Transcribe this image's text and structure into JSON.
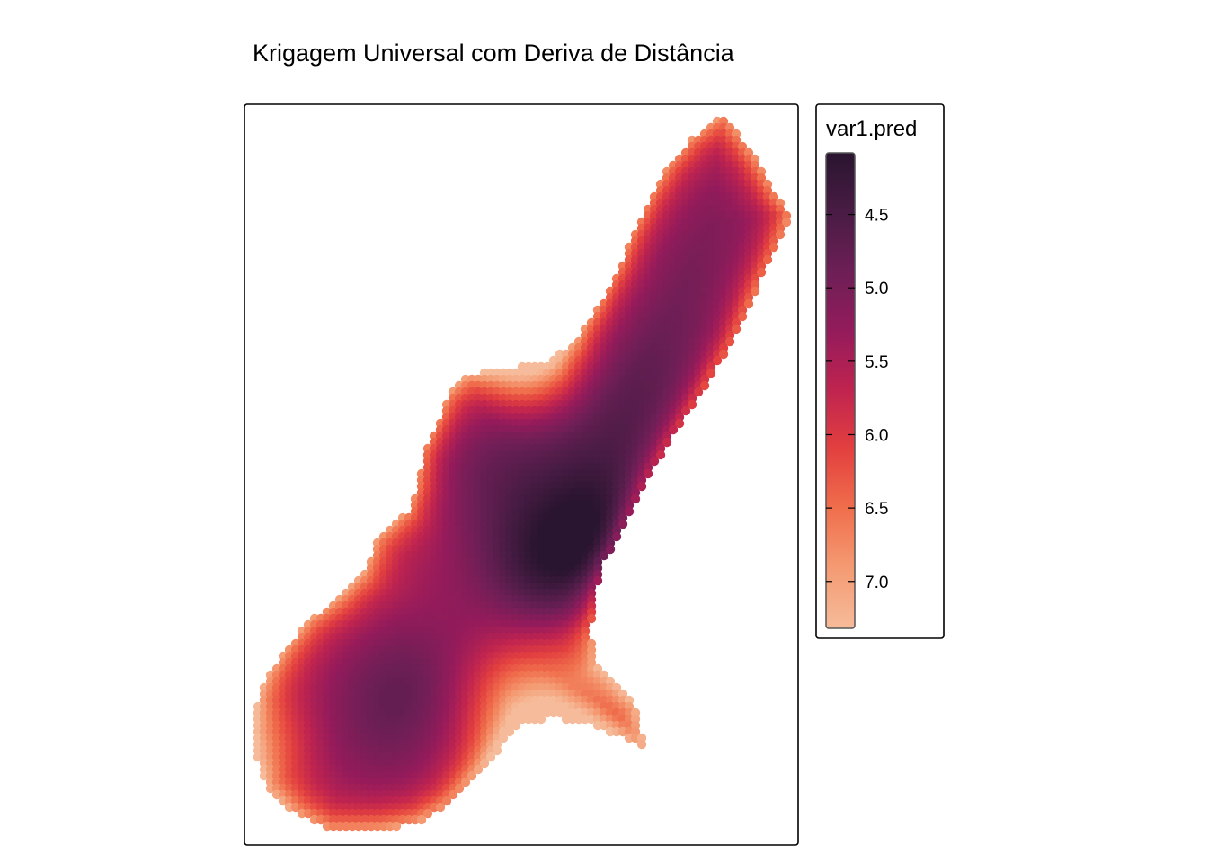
{
  "chart_data": {
    "type": "heatmap",
    "title": "Krigagem Universal com Deriva de Distância",
    "xlabel": "",
    "ylabel": "",
    "grid": false,
    "legend": {
      "title": "var1.pred",
      "position": "right",
      "range": [
        4.08,
        7.32
      ],
      "ticks": [
        "4.5",
        "5.0",
        "5.5",
        "6.0",
        "6.5",
        "7.0"
      ],
      "tick_values": [
        4.5,
        5.0,
        5.5,
        6.0,
        6.5,
        7.0
      ],
      "colormap": "rocket",
      "color_stops": [
        {
          "value": 4.08,
          "color": "#2a1530"
        },
        {
          "value": 4.5,
          "color": "#4a1c45"
        },
        {
          "value": 4.9,
          "color": "#6e1f56"
        },
        {
          "value": 5.3,
          "color": "#951b5b"
        },
        {
          "value": 5.7,
          "color": "#c0244f"
        },
        {
          "value": 6.1,
          "color": "#e3403f"
        },
        {
          "value": 6.5,
          "color": "#f06e4c"
        },
        {
          "value": 6.9,
          "color": "#f49a72"
        },
        {
          "value": 7.32,
          "color": "#f6bb9a"
        }
      ]
    },
    "field": {
      "description_values": "predicted var1 over the study region",
      "min": 4.08,
      "max": 7.32
    }
  }
}
